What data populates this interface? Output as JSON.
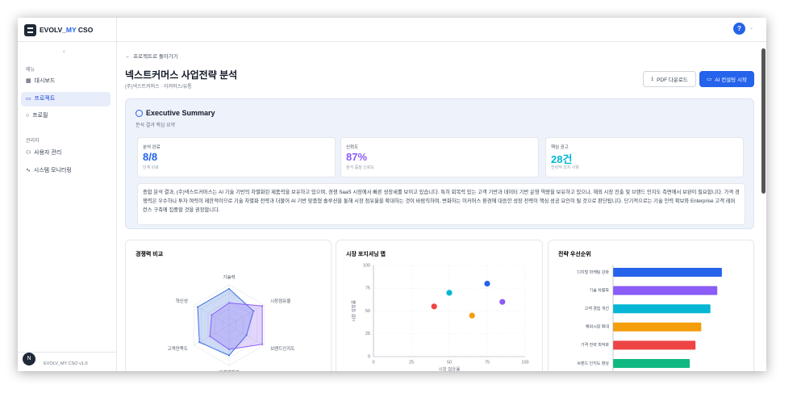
{
  "app": {
    "brand": [
      "EVOLV_",
      "MY",
      " CSO"
    ],
    "menu_label": "메뉴",
    "menu": [
      "대시보드",
      "프로젝트",
      "프로필"
    ],
    "admin_label": "관리자",
    "admin_menu": [
      "사용자 관리",
      "시스템 모니터링"
    ],
    "avatar": "N",
    "version": "EVOLV_MY CSO v1.0",
    "help": "?"
  },
  "page": {
    "back": "프로젝트로 돌아가기",
    "title": "넥스트커머스 사업전략 분석",
    "subtitle": "(주)넥스트커머스 · 이커머스/유통",
    "buttons": [
      "PDF 다운로드",
      "AI 컨설팅 시작"
    ]
  },
  "summary": {
    "title": "Executive Summary",
    "subtitle": "분석 결과 핵심 요약",
    "stats": [
      {
        "label": "분석 완료",
        "value": "8/8",
        "note": "단계 완료",
        "color": "#2563eb"
      },
      {
        "label": "신뢰도",
        "value": "87%",
        "note": "분석 품질 신뢰도",
        "color": "#8b5cf6"
      },
      {
        "label": "핵심 권고",
        "value": "28건",
        "note": "전략적 조치 사항",
        "color": "#06b6d4"
      }
    ],
    "text": "종합 분석 결과, (주)넥스트커머스는 AI 기술 기반의 차별화된 제품력을 보유하고 있으며, 경쟁 SaaS 시장에서 빠른 성장세를 보이고 있습니다. 특히 회복력 있는 고객 기반과 데이터 기반 운영 역량을 보유하고 있으나, 해외 시장 진출 및 브랜드 인지도 측면에서 보완이 필요합니다. 가격 경쟁력은 우수하나 투자 여력이 제한적이므로 기술 차별화 전략과 더불어 AI 기반 맞춤형 솔루션을 통해 시장 점유율을 확대하는 것이 바람직하며, 변화하는 이커머스 환경에 대응한 성장 전략이 핵심 성공 요인이 될 것으로 판단됩니다. 단기적으로는 기술 인력 확보와 Enterprise 고객 레퍼런스 구축에 집중할 것을 권장합니다."
  },
  "chart_data": [
    {
      "type": "radar",
      "title": "경쟁력 비교",
      "categories": [
        "기술력",
        "시장점유율",
        "브랜드인지도",
        "가격경쟁력",
        "고객만족도",
        "혁신성"
      ],
      "rlim": [
        0,
        100
      ],
      "series": [
        {
          "color": "#3b6fe0",
          "values": [
            90,
            70,
            50,
            75,
            85,
            90
          ]
        },
        {
          "color": "#8b5cf6",
          "values": [
            55,
            95,
            95,
            60,
            55,
            50
          ]
        }
      ]
    },
    {
      "type": "scatter",
      "title": "시장 포지셔닝 맵",
      "xlabel": "시장 점유율",
      "ylabel": "시장 성장률",
      "x": [
        40,
        50,
        65,
        75,
        85
      ],
      "values": [
        55,
        70,
        45,
        80,
        60
      ],
      "colors": [
        "#ef4444",
        "#06b6d4",
        "#f59e0b",
        "#2563eb",
        "#8b5cf6"
      ],
      "xlim": [
        0,
        100
      ],
      "xticks": [
        0,
        25,
        50,
        75,
        100
      ],
      "ylim": [
        0,
        100
      ],
      "yticks": [
        0,
        25,
        50,
        75,
        100
      ],
      "grid": true
    },
    {
      "type": "hbar",
      "title": "전략 우선순위",
      "categories": [
        "디지털 마케팅 강화",
        "기술 차별화",
        "고객 경험 개선",
        "해외시장 확대",
        "가격 전략 최적화",
        "브랜드 인지도 향상"
      ],
      "values": [
        95,
        91,
        85,
        77,
        72,
        67
      ],
      "colors": [
        "#2563eb",
        "#8b5cf6",
        "#06b6d4",
        "#f59e0b",
        "#ef4444",
        "#10b981"
      ],
      "xlim": [
        0,
        100
      ]
    }
  ]
}
